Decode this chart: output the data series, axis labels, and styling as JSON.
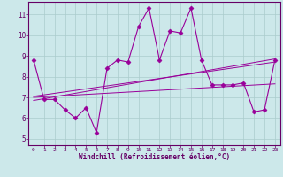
{
  "x_data": [
    0,
    1,
    2,
    3,
    4,
    5,
    6,
    7,
    8,
    9,
    10,
    11,
    12,
    13,
    14,
    15,
    16,
    17,
    18,
    19,
    20,
    21,
    22,
    23
  ],
  "y_data": [
    8.8,
    6.9,
    6.9,
    6.4,
    6.0,
    6.5,
    5.3,
    8.4,
    8.8,
    8.7,
    10.4,
    11.3,
    8.8,
    10.2,
    10.1,
    11.3,
    8.8,
    7.6,
    7.6,
    7.6,
    7.7,
    6.3,
    6.4,
    8.8
  ],
  "trend1_x": [
    0,
    23
  ],
  "trend1_y": [
    7.05,
    8.7
  ],
  "trend2_x": [
    0,
    23
  ],
  "trend2_y": [
    7.0,
    7.65
  ],
  "trend3_x": [
    0,
    23
  ],
  "trend3_y": [
    6.85,
    8.85
  ],
  "line_color": "#990099",
  "bg_color": "#cce8ea",
  "grid_color": "#aacccc",
  "axis_color": "#660066",
  "xlim": [
    -0.5,
    23.5
  ],
  "ylim": [
    4.7,
    11.6
  ],
  "yticks": [
    5,
    6,
    7,
    8,
    9,
    10,
    11
  ],
  "xticks": [
    0,
    1,
    2,
    3,
    4,
    5,
    6,
    7,
    8,
    9,
    10,
    11,
    12,
    13,
    14,
    15,
    16,
    17,
    18,
    19,
    20,
    21,
    22,
    23
  ],
  "xlabel": "Windchill (Refroidissement éolien,°C)",
  "font_color": "#660066",
  "marker": "D",
  "markersize": 2.5,
  "linewidth": 0.8,
  "trend_linewidth": 0.7
}
